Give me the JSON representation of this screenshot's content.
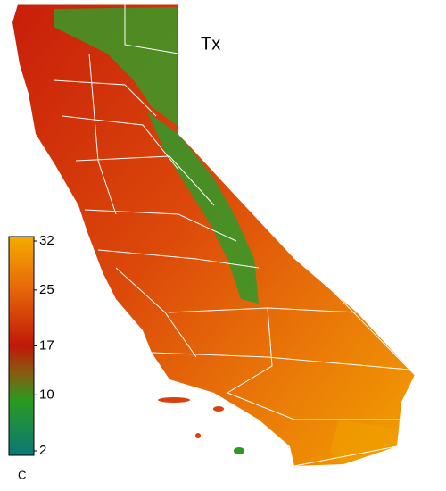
{
  "map": {
    "title": "Tx",
    "colorbar": {
      "range": [
        2,
        32
      ],
      "ticks": [
        32,
        25,
        17,
        10,
        2
      ],
      "unit": "C"
    }
  }
}
